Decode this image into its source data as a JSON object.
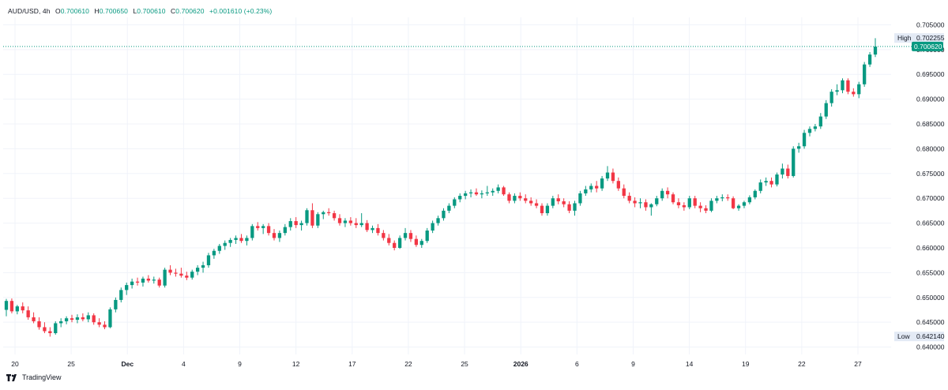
{
  "legend": {
    "symbol": "AUD/USD",
    "timeframe": "4h",
    "o_label": "O",
    "o_value": "0.700610",
    "h_label": "H",
    "h_value": "0.700650",
    "l_label": "L",
    "l_value": "0.700610",
    "c_label": "C",
    "c_value": "0.700620",
    "change": "+0.001610 (+0.23%)"
  },
  "brand": {
    "name": "TradingView"
  },
  "colors": {
    "up": "#089981",
    "down": "#f23645",
    "grid": "#f0f3fa",
    "axis_text": "#131722",
    "price_tag": "#089981",
    "marker_bg": "#e3eaf5"
  },
  "chart_data": {
    "type": "candlestick",
    "symbol": "AUD/USD",
    "interval": "4h",
    "ylim": [
      0.6385,
      0.7065
    ],
    "y_ticks": [
      "0.705000",
      "0.700000",
      "0.695000",
      "0.690000",
      "0.685000",
      "0.680000",
      "0.675000",
      "0.670000",
      "0.665000",
      "0.660000",
      "0.655000",
      "0.650000",
      "0.645000",
      "0.640000"
    ],
    "x_ticks": [
      "20",
      "25",
      "Dec",
      "4",
      "9",
      "12",
      "17",
      "22",
      "25",
      "2026",
      "6",
      "9",
      "14",
      "19",
      "22",
      "27"
    ],
    "high_label": "High",
    "high_value": "0.702255",
    "low_label": "Low",
    "low_value": "0.642140",
    "last_price": "0.700620",
    "ohlc": [
      [
        0.6475,
        0.6497,
        0.6462,
        0.6493
      ],
      [
        0.6493,
        0.6498,
        0.6468,
        0.6472
      ],
      [
        0.6472,
        0.6485,
        0.6466,
        0.6482
      ],
      [
        0.6482,
        0.649,
        0.6468,
        0.6474
      ],
      [
        0.6474,
        0.6482,
        0.6455,
        0.646
      ],
      [
        0.646,
        0.647,
        0.6448,
        0.6452
      ],
      [
        0.6452,
        0.646,
        0.6435,
        0.644
      ],
      [
        0.644,
        0.645,
        0.6428,
        0.6432
      ],
      [
        0.6432,
        0.644,
        0.6421,
        0.6428
      ],
      [
        0.6428,
        0.6452,
        0.6425,
        0.6448
      ],
      [
        0.6448,
        0.6458,
        0.644,
        0.6452
      ],
      [
        0.6452,
        0.6462,
        0.6446,
        0.6458
      ],
      [
        0.6458,
        0.6465,
        0.645,
        0.6455
      ],
      [
        0.6455,
        0.6466,
        0.6448,
        0.646
      ],
      [
        0.646,
        0.6468,
        0.6452,
        0.6456
      ],
      [
        0.6456,
        0.647,
        0.645,
        0.6464
      ],
      [
        0.6464,
        0.6468,
        0.6445,
        0.645
      ],
      [
        0.645,
        0.6458,
        0.644,
        0.6445
      ],
      [
        0.6445,
        0.6452,
        0.6436,
        0.644
      ],
      [
        0.644,
        0.648,
        0.6438,
        0.6476
      ],
      [
        0.6476,
        0.65,
        0.647,
        0.6495
      ],
      [
        0.6495,
        0.652,
        0.649,
        0.6515
      ],
      [
        0.6515,
        0.653,
        0.6505,
        0.6525
      ],
      [
        0.6525,
        0.6538,
        0.6518,
        0.6532
      ],
      [
        0.6532,
        0.654,
        0.6524,
        0.653
      ],
      [
        0.653,
        0.6542,
        0.6522,
        0.6538
      ],
      [
        0.6538,
        0.6545,
        0.653,
        0.6534
      ],
      [
        0.6534,
        0.6542,
        0.6528,
        0.6536
      ],
      [
        0.6536,
        0.654,
        0.652,
        0.6524
      ],
      [
        0.6524,
        0.656,
        0.652,
        0.6556
      ],
      [
        0.6556,
        0.6565,
        0.6545,
        0.655
      ],
      [
        0.655,
        0.6558,
        0.6542,
        0.6548
      ],
      [
        0.6548,
        0.656,
        0.654,
        0.6544
      ],
      [
        0.6544,
        0.6552,
        0.6535,
        0.654
      ],
      [
        0.654,
        0.6556,
        0.6536,
        0.6552
      ],
      [
        0.6552,
        0.6565,
        0.6545,
        0.656
      ],
      [
        0.656,
        0.6572,
        0.655,
        0.6565
      ],
      [
        0.6565,
        0.659,
        0.656,
        0.6585
      ],
      [
        0.6585,
        0.6598,
        0.6578,
        0.6594
      ],
      [
        0.6594,
        0.6608,
        0.6588,
        0.6604
      ],
      [
        0.6604,
        0.6615,
        0.6596,
        0.661
      ],
      [
        0.661,
        0.662,
        0.6602,
        0.6616
      ],
      [
        0.6616,
        0.6625,
        0.6608,
        0.662
      ],
      [
        0.662,
        0.6628,
        0.661,
        0.6614
      ],
      [
        0.6614,
        0.6625,
        0.6605,
        0.662
      ],
      [
        0.662,
        0.6648,
        0.6615,
        0.6644
      ],
      [
        0.6644,
        0.6652,
        0.6635,
        0.664
      ],
      [
        0.664,
        0.6648,
        0.6628,
        0.6644
      ],
      [
        0.6644,
        0.665,
        0.6625,
        0.663
      ],
      [
        0.663,
        0.6638,
        0.6615,
        0.662
      ],
      [
        0.662,
        0.6635,
        0.6612,
        0.663
      ],
      [
        0.663,
        0.6648,
        0.6625,
        0.6642
      ],
      [
        0.6642,
        0.666,
        0.6635,
        0.6654
      ],
      [
        0.6654,
        0.6662,
        0.664,
        0.6646
      ],
      [
        0.6646,
        0.6655,
        0.6635,
        0.665
      ],
      [
        0.665,
        0.668,
        0.6645,
        0.6676
      ],
      [
        0.6676,
        0.669,
        0.664,
        0.6645
      ],
      [
        0.6645,
        0.6672,
        0.664,
        0.6668
      ],
      [
        0.6668,
        0.6675,
        0.6658,
        0.6672
      ],
      [
        0.6672,
        0.668,
        0.6665,
        0.667
      ],
      [
        0.667,
        0.6675,
        0.6655,
        0.666
      ],
      [
        0.666,
        0.6668,
        0.6645,
        0.665
      ],
      [
        0.665,
        0.666,
        0.6642,
        0.6655
      ],
      [
        0.6655,
        0.6662,
        0.6645,
        0.665
      ],
      [
        0.665,
        0.666,
        0.664,
        0.6646
      ],
      [
        0.6646,
        0.667,
        0.6642,
        0.665
      ],
      [
        0.665,
        0.6656,
        0.6632,
        0.6636
      ],
      [
        0.6636,
        0.6645,
        0.663,
        0.664
      ],
      [
        0.664,
        0.6648,
        0.6625,
        0.663
      ],
      [
        0.663,
        0.6636,
        0.6615,
        0.662
      ],
      [
        0.662,
        0.6628,
        0.6605,
        0.661
      ],
      [
        0.661,
        0.6615,
        0.6595,
        0.66
      ],
      [
        0.66,
        0.6625,
        0.6598,
        0.662
      ],
      [
        0.662,
        0.664,
        0.6615,
        0.663
      ],
      [
        0.663,
        0.6636,
        0.6612,
        0.6618
      ],
      [
        0.6618,
        0.6625,
        0.6602,
        0.6606
      ],
      [
        0.6606,
        0.6618,
        0.66,
        0.6614
      ],
      [
        0.6614,
        0.664,
        0.661,
        0.6635
      ],
      [
        0.6635,
        0.6655,
        0.663,
        0.665
      ],
      [
        0.665,
        0.6665,
        0.6645,
        0.666
      ],
      [
        0.666,
        0.668,
        0.6655,
        0.6675
      ],
      [
        0.6675,
        0.669,
        0.667,
        0.6685
      ],
      [
        0.6685,
        0.6702,
        0.668,
        0.6698
      ],
      [
        0.6698,
        0.671,
        0.6692,
        0.6705
      ],
      [
        0.6705,
        0.6715,
        0.6698,
        0.671
      ],
      [
        0.671,
        0.6718,
        0.6702,
        0.6712
      ],
      [
        0.6712,
        0.672,
        0.6705,
        0.6708
      ],
      [
        0.6708,
        0.6716,
        0.67,
        0.671
      ],
      [
        0.671,
        0.6725,
        0.6705,
        0.6712
      ],
      [
        0.6712,
        0.672,
        0.6705,
        0.6715
      ],
      [
        0.6715,
        0.6728,
        0.671,
        0.6722
      ],
      [
        0.6722,
        0.6725,
        0.6705,
        0.6708
      ],
      [
        0.6708,
        0.6712,
        0.669,
        0.6695
      ],
      [
        0.6695,
        0.671,
        0.669,
        0.6705
      ],
      [
        0.6705,
        0.6712,
        0.6695,
        0.67
      ],
      [
        0.67,
        0.6708,
        0.669,
        0.6695
      ],
      [
        0.6695,
        0.6702,
        0.6685,
        0.669
      ],
      [
        0.669,
        0.6698,
        0.668,
        0.6685
      ],
      [
        0.6685,
        0.669,
        0.6665,
        0.667
      ],
      [
        0.667,
        0.669,
        0.6665,
        0.6685
      ],
      [
        0.6685,
        0.6705,
        0.668,
        0.67
      ],
      [
        0.67,
        0.6708,
        0.6688,
        0.6694
      ],
      [
        0.6694,
        0.67,
        0.6682,
        0.6688
      ],
      [
        0.6688,
        0.6694,
        0.667,
        0.6675
      ],
      [
        0.6675,
        0.6695,
        0.6665,
        0.669
      ],
      [
        0.669,
        0.6715,
        0.6685,
        0.671
      ],
      [
        0.671,
        0.6725,
        0.6705,
        0.6718
      ],
      [
        0.6718,
        0.673,
        0.6712,
        0.6725
      ],
      [
        0.6725,
        0.6735,
        0.6712,
        0.672
      ],
      [
        0.672,
        0.6745,
        0.6715,
        0.674
      ],
      [
        0.674,
        0.6765,
        0.6735,
        0.6752
      ],
      [
        0.6752,
        0.676,
        0.673,
        0.6735
      ],
      [
        0.6735,
        0.6742,
        0.6715,
        0.672
      ],
      [
        0.672,
        0.6728,
        0.67,
        0.6705
      ],
      [
        0.6705,
        0.6712,
        0.669,
        0.6695
      ],
      [
        0.6695,
        0.6702,
        0.6682,
        0.669
      ],
      [
        0.669,
        0.67,
        0.668,
        0.6692
      ],
      [
        0.6692,
        0.6698,
        0.6675,
        0.6682
      ],
      [
        0.6682,
        0.669,
        0.6665,
        0.6688
      ],
      [
        0.6688,
        0.6705,
        0.6684,
        0.67
      ],
      [
        0.67,
        0.672,
        0.6695,
        0.6715
      ],
      [
        0.6715,
        0.6722,
        0.67,
        0.6708
      ],
      [
        0.6708,
        0.6712,
        0.6688,
        0.6692
      ],
      [
        0.6692,
        0.67,
        0.668,
        0.6686
      ],
      [
        0.6686,
        0.6692,
        0.6675,
        0.6682
      ],
      [
        0.6682,
        0.6705,
        0.6678,
        0.67
      ],
      [
        0.67,
        0.6705,
        0.668,
        0.6685
      ],
      [
        0.6685,
        0.6692,
        0.6672,
        0.668
      ],
      [
        0.668,
        0.6686,
        0.667,
        0.6675
      ],
      [
        0.6675,
        0.67,
        0.6672,
        0.6695
      ],
      [
        0.6695,
        0.6705,
        0.669,
        0.67
      ],
      [
        0.67,
        0.6708,
        0.6694,
        0.6702
      ],
      [
        0.6702,
        0.6708,
        0.6695,
        0.67
      ],
      [
        0.67,
        0.6704,
        0.6678,
        0.668
      ],
      [
        0.668,
        0.6688,
        0.6675,
        0.6685
      ],
      [
        0.6685,
        0.6695,
        0.668,
        0.6692
      ],
      [
        0.6692,
        0.6706,
        0.6688,
        0.6702
      ],
      [
        0.6702,
        0.6718,
        0.6698,
        0.6715
      ],
      [
        0.6715,
        0.6738,
        0.671,
        0.6732
      ],
      [
        0.6732,
        0.6742,
        0.6725,
        0.6735
      ],
      [
        0.6735,
        0.6742,
        0.6722,
        0.6728
      ],
      [
        0.6728,
        0.6752,
        0.6724,
        0.6748
      ],
      [
        0.6748,
        0.677,
        0.674,
        0.676
      ],
      [
        0.676,
        0.6768,
        0.674,
        0.6745
      ],
      [
        0.6745,
        0.6805,
        0.6742,
        0.68
      ],
      [
        0.68,
        0.6812,
        0.6792,
        0.6805
      ],
      [
        0.6805,
        0.6838,
        0.68,
        0.6832
      ],
      [
        0.6832,
        0.6845,
        0.6825,
        0.684
      ],
      [
        0.684,
        0.685,
        0.6835,
        0.6845
      ],
      [
        0.6845,
        0.6872,
        0.684,
        0.6865
      ],
      [
        0.6865,
        0.6898,
        0.686,
        0.6892
      ],
      [
        0.6892,
        0.692,
        0.6885,
        0.6915
      ],
      [
        0.6915,
        0.693,
        0.6908,
        0.6918
      ],
      [
        0.6918,
        0.6942,
        0.6912,
        0.6938
      ],
      [
        0.6938,
        0.6942,
        0.691,
        0.6915
      ],
      [
        0.6915,
        0.6922,
        0.6905,
        0.691
      ],
      [
        0.691,
        0.6935,
        0.6902,
        0.693
      ],
      [
        0.693,
        0.6975,
        0.6925,
        0.697
      ],
      [
        0.697,
        0.6995,
        0.6965,
        0.699
      ],
      [
        0.699,
        0.7023,
        0.6985,
        0.7006
      ]
    ]
  }
}
